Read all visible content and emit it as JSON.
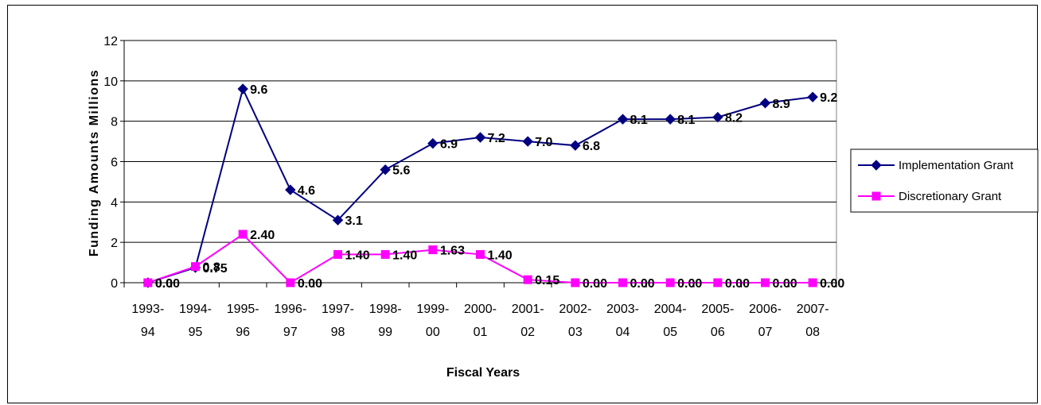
{
  "chart_data": {
    "type": "line",
    "categories": [
      "1993-94",
      "1994-95",
      "1995-96",
      "1996-97",
      "1997-98",
      "1998-99",
      "1999-00",
      "2000-01",
      "2001-02",
      "2002-03",
      "2003-04",
      "2004-05",
      "2005-06",
      "2006-07",
      "2007-08"
    ],
    "category_lines": [
      [
        "1993-",
        "94"
      ],
      [
        "1994-",
        "95"
      ],
      [
        "1995-",
        "96"
      ],
      [
        "1996-",
        "97"
      ],
      [
        "1997-",
        "98"
      ],
      [
        "1998-",
        "99"
      ],
      [
        "1999-",
        "00"
      ],
      [
        "2000-",
        "01"
      ],
      [
        "2001-",
        "02"
      ],
      [
        "2002-",
        "03"
      ],
      [
        "2003-",
        "04"
      ],
      [
        "2004-",
        "05"
      ],
      [
        "2005-",
        "06"
      ],
      [
        "2006-",
        "07"
      ],
      [
        "2007-",
        "08"
      ]
    ],
    "series": [
      {
        "name": "Implementation Grant",
        "color": "#000080",
        "marker": "diamond",
        "values": [
          0.0,
          0.75,
          9.6,
          4.6,
          3.1,
          5.6,
          6.9,
          7.2,
          7.0,
          6.8,
          8.1,
          8.1,
          8.2,
          8.9,
          9.2
        ],
        "labels": [
          "0.0",
          "0.75",
          "9.6",
          "4.6",
          "3.1",
          "5.6",
          "6.9",
          "7.2",
          "7.0",
          "6.8",
          "8.1",
          "8.1",
          "8.2",
          "8.9",
          "9.2"
        ]
      },
      {
        "name": "Discretionary Grant",
        "color": "#ff00ff",
        "marker": "square",
        "values": [
          0.0,
          0.8,
          2.4,
          0.0,
          1.4,
          1.4,
          1.63,
          1.4,
          0.15,
          0.0,
          0.0,
          0.0,
          0.0,
          0.0,
          0.0
        ],
        "labels": [
          "0.00",
          "0.8",
          "2.40",
          "0.00",
          "1.40",
          "1.40",
          "1.63",
          "1.40",
          "0.15",
          "0.00",
          "0.00",
          "0.00",
          "0.00",
          "0.00",
          "0.00"
        ]
      }
    ],
    "xlabel": "Fiscal Years",
    "ylabel": "Funding Amounts Millions",
    "ylim": [
      0,
      12
    ],
    "yticks": [
      0,
      2,
      4,
      6,
      8,
      10,
      12
    ],
    "grid": true,
    "legend": "right"
  }
}
